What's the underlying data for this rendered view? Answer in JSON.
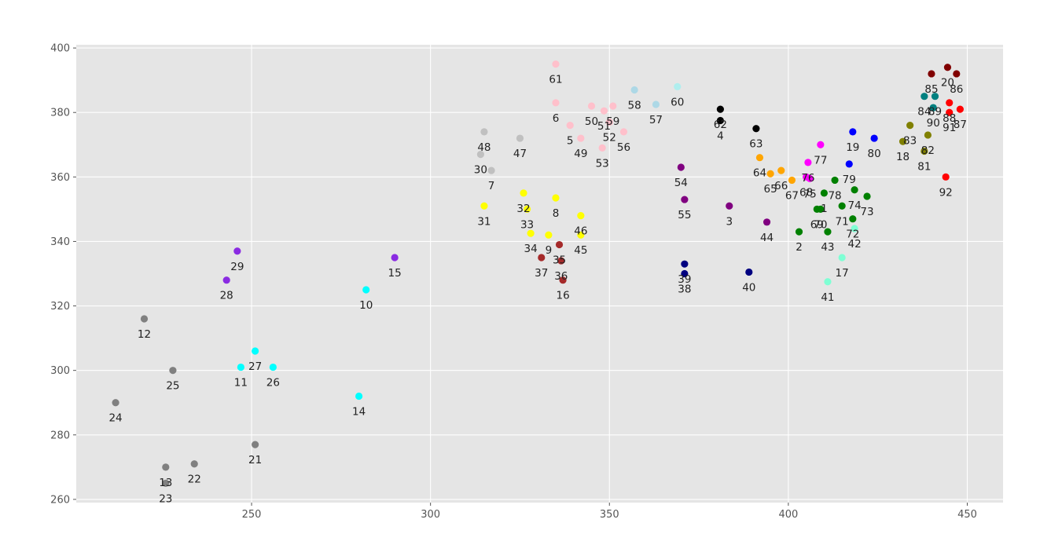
{
  "chart_data": {
    "type": "scatter",
    "title": "",
    "xlabel": "",
    "ylabel": "",
    "xlim": [
      201,
      460
    ],
    "ylim": [
      259,
      401
    ],
    "grid": true,
    "background": "#e5e5e5",
    "grid_color": "#ffffff",
    "x_ticks": [
      250,
      300,
      350,
      400,
      450
    ],
    "y_ticks": [
      260,
      280,
      300,
      320,
      340,
      360,
      380,
      400
    ],
    "points": [
      {
        "id": "1",
        "x": 410,
        "y": 355,
        "color": "#008000"
      },
      {
        "id": "2",
        "x": 403,
        "y": 343,
        "color": "#008000"
      },
      {
        "id": "3",
        "x": 383.5,
        "y": 351,
        "color": "#800080"
      },
      {
        "id": "4",
        "x": 381,
        "y": 377.5,
        "color": "#000000"
      },
      {
        "id": "5",
        "x": 339,
        "y": 376,
        "color": "#ffc0cb"
      },
      {
        "id": "6",
        "x": 335,
        "y": 383,
        "color": "#ffc0cb"
      },
      {
        "id": "7",
        "x": 317,
        "y": 362,
        "color": "#c0c0c0"
      },
      {
        "id": "8",
        "x": 335,
        "y": 353.5,
        "color": "#ffff00"
      },
      {
        "id": "9",
        "x": 333,
        "y": 342,
        "color": "#ffff00"
      },
      {
        "id": "10",
        "x": 282,
        "y": 325,
        "color": "#00ffff"
      },
      {
        "id": "11",
        "x": 247,
        "y": 301,
        "color": "#00ffff"
      },
      {
        "id": "12",
        "x": 220,
        "y": 316,
        "color": "#808080"
      },
      {
        "id": "13",
        "x": 226,
        "y": 270,
        "color": "#808080"
      },
      {
        "id": "14",
        "x": 280,
        "y": 292,
        "color": "#00ffff"
      },
      {
        "id": "15",
        "x": 290,
        "y": 335,
        "color": "#8a2be2"
      },
      {
        "id": "16",
        "x": 337,
        "y": 328,
        "color": "#a52a2a"
      },
      {
        "id": "17",
        "x": 415,
        "y": 335,
        "color": "#7fffd4"
      },
      {
        "id": "18",
        "x": 432,
        "y": 371,
        "color": "#808000"
      },
      {
        "id": "19",
        "x": 418,
        "y": 374,
        "color": "#0000ff"
      },
      {
        "id": "20",
        "x": 444.5,
        "y": 394,
        "color": "#800000"
      },
      {
        "id": "21",
        "x": 251,
        "y": 277,
        "color": "#808080"
      },
      {
        "id": "22",
        "x": 234,
        "y": 271,
        "color": "#808080"
      },
      {
        "id": "23",
        "x": 226,
        "y": 265,
        "color": "#808080"
      },
      {
        "id": "24",
        "x": 212,
        "y": 290,
        "color": "#808080"
      },
      {
        "id": "25",
        "x": 228,
        "y": 300,
        "color": "#808080"
      },
      {
        "id": "26",
        "x": 256,
        "y": 301,
        "color": "#00ffff"
      },
      {
        "id": "27",
        "x": 251,
        "y": 306,
        "color": "#00ffff"
      },
      {
        "id": "28",
        "x": 243,
        "y": 328,
        "color": "#8a2be2"
      },
      {
        "id": "29",
        "x": 246,
        "y": 337,
        "color": "#8a2be2"
      },
      {
        "id": "30",
        "x": 314,
        "y": 367,
        "color": "#c0c0c0"
      },
      {
        "id": "31",
        "x": 315,
        "y": 351,
        "color": "#ffff00"
      },
      {
        "id": "32",
        "x": 326,
        "y": 355,
        "color": "#ffff00"
      },
      {
        "id": "33",
        "x": 327,
        "y": 350,
        "color": "#ffff00"
      },
      {
        "id": "34",
        "x": 328,
        "y": 342.5,
        "color": "#ffff00"
      },
      {
        "id": "35",
        "x": 336,
        "y": 339,
        "color": "#a52a2a"
      },
      {
        "id": "36",
        "x": 336.5,
        "y": 334,
        "color": "#a52a2a"
      },
      {
        "id": "37",
        "x": 331,
        "y": 335,
        "color": "#a52a2a"
      },
      {
        "id": "38",
        "x": 371,
        "y": 330,
        "color": "#000080"
      },
      {
        "id": "39",
        "x": 371,
        "y": 333,
        "color": "#000080"
      },
      {
        "id": "40",
        "x": 389,
        "y": 330.5,
        "color": "#000080"
      },
      {
        "id": "41",
        "x": 411,
        "y": 327.5,
        "color": "#7fffd4"
      },
      {
        "id": "42",
        "x": 418.5,
        "y": 344,
        "color": "#7fffd4"
      },
      {
        "id": "43",
        "x": 411,
        "y": 343,
        "color": "#008000"
      },
      {
        "id": "44",
        "x": 394,
        "y": 346,
        "color": "#800080"
      },
      {
        "id": "45",
        "x": 342,
        "y": 342,
        "color": "#ffff00"
      },
      {
        "id": "46",
        "x": 342,
        "y": 348,
        "color": "#ffff00"
      },
      {
        "id": "47",
        "x": 325,
        "y": 372,
        "color": "#c0c0c0"
      },
      {
        "id": "48",
        "x": 315,
        "y": 374,
        "color": "#c0c0c0"
      },
      {
        "id": "49",
        "x": 342,
        "y": 372,
        "color": "#ffc0cb"
      },
      {
        "id": "50",
        "x": 345,
        "y": 382,
        "color": "#ffc0cb"
      },
      {
        "id": "51",
        "x": 348.5,
        "y": 380.5,
        "color": "#ffc0cb"
      },
      {
        "id": "52",
        "x": 350,
        "y": 377,
        "color": "#ffc0cb"
      },
      {
        "id": "53",
        "x": 348,
        "y": 369,
        "color": "#ffc0cb"
      },
      {
        "id": "54",
        "x": 370,
        "y": 363,
        "color": "#800080"
      },
      {
        "id": "55",
        "x": 371,
        "y": 353,
        "color": "#800080"
      },
      {
        "id": "56",
        "x": 354,
        "y": 374,
        "color": "#ffc0cb"
      },
      {
        "id": "57",
        "x": 363,
        "y": 382.5,
        "color": "#add8e6"
      },
      {
        "id": "58",
        "x": 357,
        "y": 387,
        "color": "#add8e6"
      },
      {
        "id": "59",
        "x": 351,
        "y": 382,
        "color": "#ffc0cb"
      },
      {
        "id": "60",
        "x": 369,
        "y": 388,
        "color": "#afeeee"
      },
      {
        "id": "61",
        "x": 335,
        "y": 395,
        "color": "#ffc0cb"
      },
      {
        "id": "62",
        "x": 381,
        "y": 381,
        "color": "#000000"
      },
      {
        "id": "63",
        "x": 391,
        "y": 375,
        "color": "#000000"
      },
      {
        "id": "64",
        "x": 392,
        "y": 366,
        "color": "#ffa500"
      },
      {
        "id": "65",
        "x": 395,
        "y": 361,
        "color": "#ffa500"
      },
      {
        "id": "66",
        "x": 398,
        "y": 362,
        "color": "#ffa500"
      },
      {
        "id": "67",
        "x": 401,
        "y": 359,
        "color": "#ffa500"
      },
      {
        "id": "68",
        "x": 405,
        "y": 360,
        "color": "#ff00ff"
      },
      {
        "id": "69",
        "x": 408,
        "y": 350,
        "color": "#008000"
      },
      {
        "id": "70",
        "x": 409,
        "y": 350,
        "color": "#008000"
      },
      {
        "id": "71",
        "x": 415,
        "y": 351,
        "color": "#008000"
      },
      {
        "id": "72",
        "x": 418,
        "y": 347,
        "color": "#008000"
      },
      {
        "id": "73",
        "x": 422,
        "y": 354,
        "color": "#008000"
      },
      {
        "id": "74",
        "x": 418.5,
        "y": 356,
        "color": "#008000"
      },
      {
        "id": "75",
        "x": 406,
        "y": 359.5,
        "color": "#ff00ff"
      },
      {
        "id": "76",
        "x": 405.5,
        "y": 364.5,
        "color": "#ff00ff"
      },
      {
        "id": "77",
        "x": 409,
        "y": 370,
        "color": "#ff00ff"
      },
      {
        "id": "78",
        "x": 413,
        "y": 359,
        "color": "#008000"
      },
      {
        "id": "79",
        "x": 417,
        "y": 364,
        "color": "#0000ff"
      },
      {
        "id": "80",
        "x": 424,
        "y": 372,
        "color": "#0000ff"
      },
      {
        "id": "81",
        "x": 438,
        "y": 368,
        "color": "#808000"
      },
      {
        "id": "82",
        "x": 439,
        "y": 373,
        "color": "#808000"
      },
      {
        "id": "83",
        "x": 434,
        "y": 376,
        "color": "#808000"
      },
      {
        "id": "84",
        "x": 438,
        "y": 385,
        "color": "#008080"
      },
      {
        "id": "85",
        "x": 440,
        "y": 392,
        "color": "#800000"
      },
      {
        "id": "86",
        "x": 447,
        "y": 392,
        "color": "#800000"
      },
      {
        "id": "87",
        "x": 448,
        "y": 381,
        "color": "#ff0000"
      },
      {
        "id": "88",
        "x": 445,
        "y": 383,
        "color": "#ff0000"
      },
      {
        "id": "89",
        "x": 441,
        "y": 385,
        "color": "#008080"
      },
      {
        "id": "90",
        "x": 440.5,
        "y": 381.5,
        "color": "#008080"
      },
      {
        "id": "91",
        "x": 445,
        "y": 380,
        "color": "#ff0000"
      },
      {
        "id": "92",
        "x": 444,
        "y": 360,
        "color": "#ff0000"
      }
    ]
  }
}
